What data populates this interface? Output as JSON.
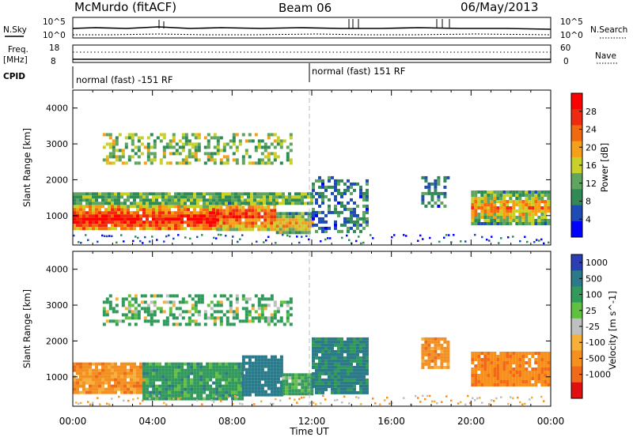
{
  "header": {
    "radar_title": "McMurdo (fitACF)",
    "beam": "Beam 06",
    "date": "06/May/2013"
  },
  "panels": {
    "nsky_label": "N.Sky",
    "nsearch_label": "N.Search",
    "freq_label_1": "Freq.",
    "freq_label_2": "[MHz]",
    "nave_label": "Nave",
    "cpid_label": "CPID",
    "log_tick_high": "10^5",
    "log_tick_low": "10^0",
    "freq_tick_high": "18",
    "freq_tick_low": "8",
    "nave_tick_high": "60",
    "nave_tick_low": "0",
    "cpid_segments": [
      {
        "label": "normal (fast) -151 RF",
        "start_hour": 0
      },
      {
        "label": "normal (fast) 151 RF",
        "start_hour": 12
      }
    ]
  },
  "colors": {
    "power_scale": [
      "#0000ff",
      "#1f4bb5",
      "#2f8a55",
      "#5fa55f",
      "#c8d12a",
      "#f6a01a",
      "#f26a10",
      "#ee2a10",
      "#ff0000"
    ],
    "velocity_scale": [
      "#2a3fb5",
      "#2a7a8a",
      "#2f9a5a",
      "#60c040",
      "#bfbfbf",
      "#f6b03a",
      "#f5901f",
      "#f06a1a",
      "#e01010"
    ]
  },
  "chart_data": [
    {
      "type": "heatmap",
      "name": "Power",
      "ylabel": "Slant Range [km]",
      "xlabel": "Time UT",
      "xlim": [
        0,
        24
      ],
      "ylim": [
        180,
        4500
      ],
      "x_ticks": [
        "00:00",
        "04:00",
        "08:00",
        "12:00",
        "16:00",
        "20:00",
        "00:00"
      ],
      "y_ticks": [
        1000,
        2000,
        3000,
        4000
      ],
      "colorbar": {
        "label": "Power [dB]",
        "ticks": [
          4,
          8,
          12,
          16,
          20,
          24,
          28
        ],
        "range": [
          0,
          32
        ]
      },
      "regions": [
        {
          "x": [
            0,
            7.2
          ],
          "y": [
            600,
            1300
          ],
          "value": 30
        },
        {
          "x": [
            7.2,
            10.2
          ],
          "y": [
            600,
            1450
          ],
          "value": 27
        },
        {
          "x": [
            10.2,
            12.0
          ],
          "y": [
            500,
            1100
          ],
          "value": 22
        },
        {
          "x": [
            0,
            12.0
          ],
          "y": [
            1300,
            1650
          ],
          "value": 12
        },
        {
          "x": [
            12.0,
            14.8
          ],
          "y": [
            600,
            2100
          ],
          "value": 8
        },
        {
          "x": [
            17.5,
            18.8
          ],
          "y": [
            1300,
            2100
          ],
          "value": 8
        },
        {
          "x": [
            20.0,
            23.9
          ],
          "y": [
            800,
            1700
          ],
          "value": 22
        },
        {
          "x": [
            1.5,
            11.0
          ],
          "y": [
            2500,
            3300
          ],
          "value": 14
        }
      ]
    },
    {
      "type": "heatmap",
      "name": "Velocity",
      "ylabel": "Slant Range [km]",
      "xlabel": "Time UT",
      "xlim": [
        0,
        24
      ],
      "ylim": [
        180,
        4500
      ],
      "x_ticks": [
        "00:00",
        "04:00",
        "08:00",
        "12:00",
        "16:00",
        "20:00",
        "00:00"
      ],
      "y_ticks": [
        1000,
        2000,
        3000,
        4000
      ],
      "colorbar": {
        "label": "Velocity [m s^-1]",
        "ticks": [
          "1000",
          "500",
          "100",
          "25",
          "-25",
          "-100",
          "-500",
          "-1000"
        ]
      },
      "regions": [
        {
          "x": [
            0,
            3.5
          ],
          "y": [
            600,
            1400
          ],
          "value": -150
        },
        {
          "x": [
            3.5,
            8.5
          ],
          "y": [
            400,
            1400
          ],
          "value": 150
        },
        {
          "x": [
            8.5,
            10.5
          ],
          "y": [
            500,
            1600
          ],
          "value": 400
        },
        {
          "x": [
            10.5,
            12.0
          ],
          "y": [
            500,
            1100
          ],
          "value": 120
        },
        {
          "x": [
            12.0,
            14.8
          ],
          "y": [
            600,
            2100
          ],
          "value": 300
        },
        {
          "x": [
            17.5,
            18.8
          ],
          "y": [
            1300,
            2100
          ],
          "value": -150
        },
        {
          "x": [
            20.0,
            23.9
          ],
          "y": [
            800,
            1700
          ],
          "value": -200
        },
        {
          "x": [
            1.5,
            11.0
          ],
          "y": [
            2500,
            3300
          ],
          "value": 100
        }
      ]
    }
  ]
}
